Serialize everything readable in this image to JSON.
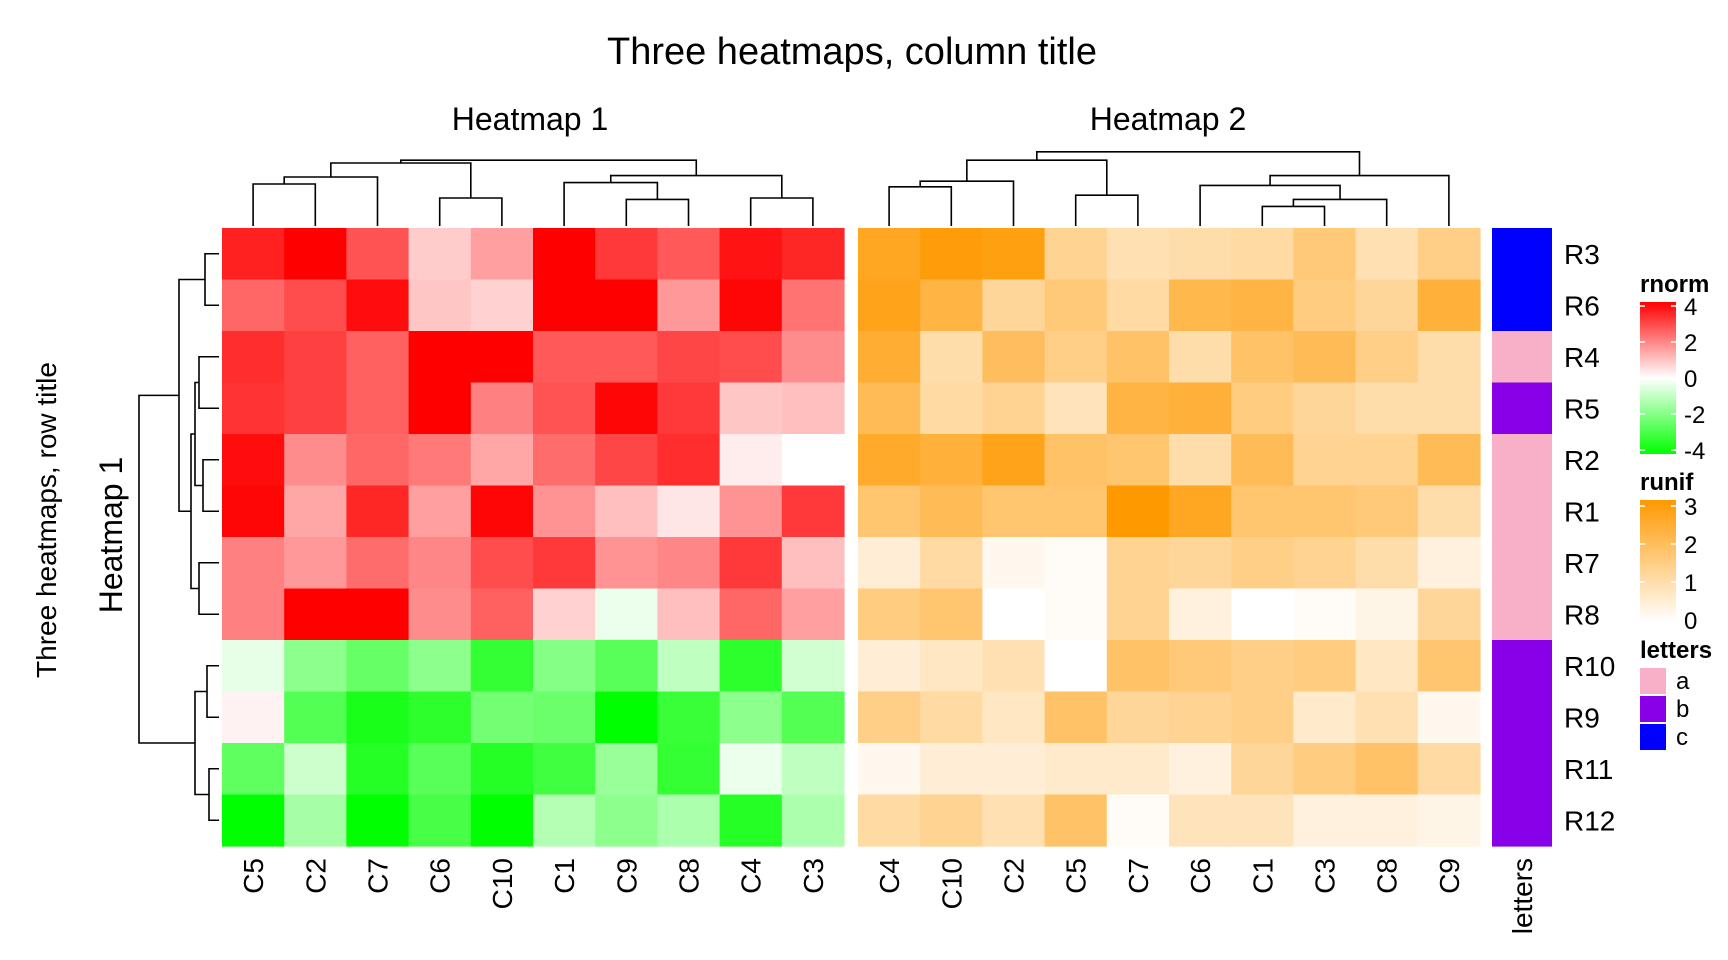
{
  "chart_data": {
    "type": "heatmap",
    "title": "Three heatmaps, column title",
    "row_title": "Three heatmaps, row title",
    "row_title_color": "#ff0000",
    "rows": [
      "R3",
      "R6",
      "R4",
      "R5",
      "R2",
      "R1",
      "R7",
      "R8",
      "R10",
      "R9",
      "R11",
      "R12"
    ],
    "heatmaps": [
      {
        "name": "Heatmap 1",
        "row_name_label": "Heatmap 1",
        "legend": "rnorm",
        "columns": [
          "C5",
          "C2",
          "C7",
          "C6",
          "C10",
          "C1",
          "C9",
          "C8",
          "C4",
          "C3"
        ],
        "values": [
          [
            3.5,
            4.0,
            2.7,
            0.8,
            1.5,
            4.0,
            3.1,
            2.6,
            3.7,
            3.4
          ],
          [
            2.4,
            2.8,
            3.8,
            0.9,
            0.7,
            4.0,
            4.0,
            1.6,
            3.9,
            2.2
          ],
          [
            3.3,
            3.0,
            2.5,
            4.0,
            4.0,
            2.6,
            2.6,
            2.9,
            2.8,
            1.8
          ],
          [
            3.2,
            3.0,
            2.5,
            4.0,
            2.0,
            2.7,
            3.9,
            3.1,
            0.9,
            1.0
          ],
          [
            3.8,
            1.8,
            2.4,
            2.1,
            1.4,
            2.3,
            2.9,
            3.3,
            0.3,
            0.0
          ],
          [
            3.9,
            1.4,
            3.4,
            1.5,
            3.9,
            1.7,
            1.0,
            0.4,
            1.7,
            3.1
          ],
          [
            2.0,
            1.6,
            2.3,
            1.9,
            2.8,
            3.1,
            1.7,
            1.9,
            3.1,
            1.0
          ],
          [
            2.0,
            4.0,
            4.0,
            1.8,
            2.5,
            0.7,
            -0.3,
            1.0,
            2.4,
            1.5
          ],
          [
            -0.4,
            -1.8,
            -2.4,
            -1.8,
            -3.2,
            -1.9,
            -2.6,
            -1.0,
            -3.3,
            -0.7
          ],
          [
            0.2,
            -2.7,
            -3.6,
            -3.3,
            -2.2,
            -2.3,
            -4.0,
            -3.1,
            -1.8,
            -2.7
          ],
          [
            -2.5,
            -0.8,
            -3.4,
            -2.6,
            -3.4,
            -3.0,
            -1.6,
            -3.2,
            -0.3,
            -1.0
          ],
          [
            -4.0,
            -1.4,
            -4.0,
            -2.9,
            -4.0,
            -1.2,
            -1.8,
            -1.3,
            -3.4,
            -1.3
          ]
        ],
        "row_dendrogram": true,
        "column_dendrogram": true
      },
      {
        "name": "Heatmap 2",
        "legend": "runif",
        "columns": [
          "C4",
          "C10",
          "C2",
          "C5",
          "C7",
          "C6",
          "C1",
          "C3",
          "C8",
          "C9"
        ],
        "values": [
          [
            2.6,
            2.9,
            2.8,
            1.3,
            0.9,
            1.0,
            1.1,
            1.6,
            0.9,
            1.4
          ],
          [
            2.7,
            2.2,
            1.2,
            1.6,
            1.1,
            2.1,
            2.2,
            1.5,
            1.2,
            2.3
          ],
          [
            2.4,
            1.0,
            1.9,
            1.4,
            1.8,
            1.0,
            1.8,
            2.0,
            1.4,
            1.0
          ],
          [
            2.0,
            1.1,
            1.3,
            0.8,
            2.2,
            2.3,
            1.5,
            1.2,
            1.0,
            1.0
          ],
          [
            2.5,
            2.3,
            2.7,
            1.8,
            1.7,
            1.0,
            2.0,
            1.3,
            1.3,
            2.0
          ],
          [
            1.7,
            2.0,
            1.7,
            1.7,
            3.0,
            2.6,
            1.7,
            1.7,
            1.6,
            1.0
          ],
          [
            0.5,
            1.1,
            0.2,
            0.1,
            1.3,
            1.2,
            1.4,
            1.3,
            1.0,
            0.4
          ],
          [
            1.5,
            1.7,
            0.0,
            0.1,
            1.3,
            0.4,
            0.0,
            0.1,
            0.3,
            1.2
          ],
          [
            0.5,
            0.7,
            0.9,
            0.0,
            1.8,
            1.6,
            1.4,
            1.5,
            0.7,
            1.7
          ],
          [
            1.4,
            1.1,
            0.7,
            1.8,
            1.2,
            1.3,
            1.4,
            0.6,
            0.9,
            0.2
          ],
          [
            0.2,
            0.5,
            0.5,
            0.6,
            0.6,
            0.4,
            1.2,
            1.5,
            1.8,
            1.1
          ],
          [
            1.1,
            1.3,
            0.9,
            1.8,
            0.1,
            0.8,
            0.8,
            0.4,
            0.4,
            0.3
          ]
        ],
        "column_dendrogram": true
      }
    ],
    "annotation": {
      "name": "letters",
      "values": [
        "c",
        "c",
        "a",
        "b",
        "a",
        "a",
        "a",
        "a",
        "b",
        "b",
        "b",
        "b"
      ]
    },
    "legends": [
      {
        "title": "rnorm",
        "type": "continuous",
        "breaks": [
          "4",
          "2",
          "0",
          "-2",
          "-4"
        ],
        "range": [
          -4,
          4
        ],
        "colors": [
          "#00ff00",
          "#ffffff",
          "#ff0000"
        ]
      },
      {
        "title": "runif",
        "type": "continuous",
        "breaks": [
          "3",
          "2",
          "1",
          "0"
        ],
        "range": [
          0,
          3
        ],
        "colors": [
          "#ffffff",
          "#ff9900"
        ]
      },
      {
        "title": "letters",
        "type": "discrete",
        "levels": [
          "a",
          "b",
          "c"
        ],
        "colors": [
          "#f8b0c8",
          "#8800e8",
          "#0000ff"
        ]
      }
    ]
  }
}
